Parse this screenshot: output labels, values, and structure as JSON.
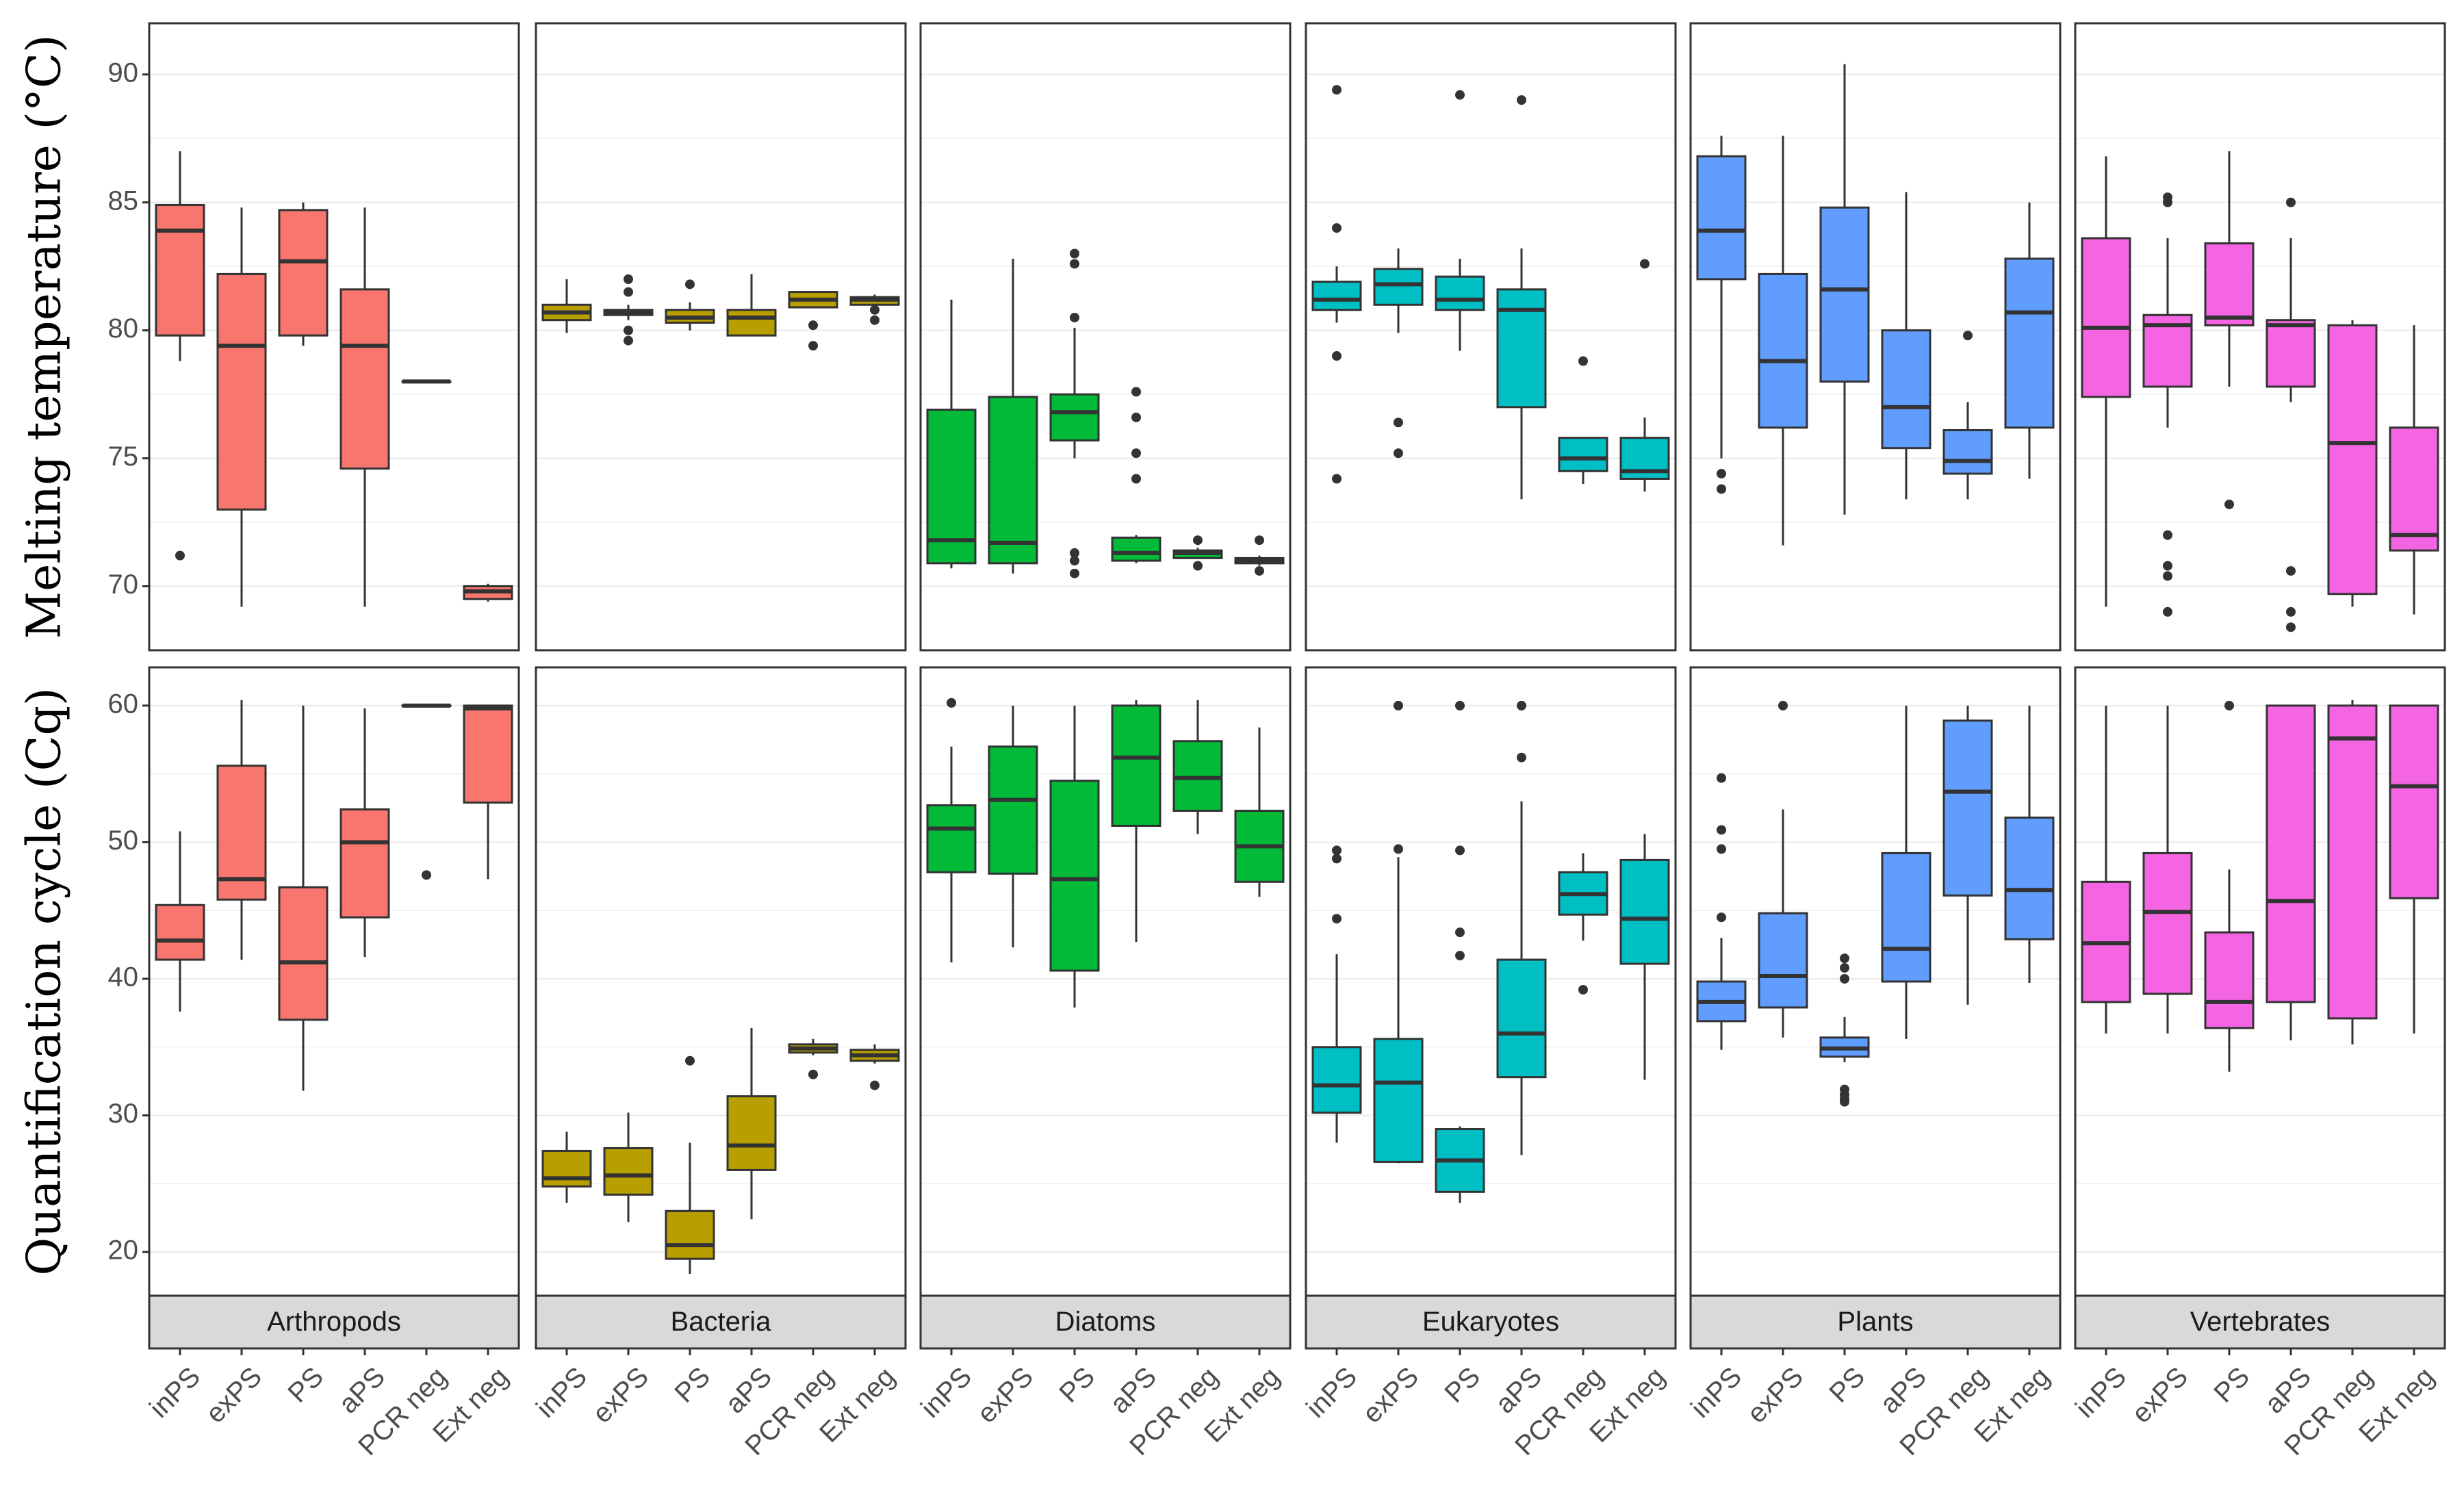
{
  "chart_data": {
    "type": "boxplot",
    "layout": "faceted grid: 2 rows (metrics) x 6 columns (taxa)",
    "categories": [
      "inPS",
      "exPS",
      "PS",
      "aPS",
      "PCR neg",
      "Ext neg"
    ],
    "facets": [
      {
        "name": "Arthropods",
        "color": "#F8766D"
      },
      {
        "name": "Bacteria",
        "color": "#B79F00"
      },
      {
        "name": "Diatoms",
        "color": "#00BA38"
      },
      {
        "name": "Eukaryotes",
        "color": "#00BFC4"
      },
      {
        "name": "Plants",
        "color": "#619CFF"
      },
      {
        "name": "Vertebrates",
        "color": "#F564E3"
      }
    ],
    "rows": [
      {
        "ylabel": "Melting temperature (°C)",
        "ylim": [
          67.5,
          92.0
        ],
        "yticks": [
          70,
          75,
          80,
          85,
          90
        ],
        "ytick_labels": [
          "70",
          "75",
          "80",
          "85",
          "90"
        ],
        "panels": [
          [
            {
              "min": 78.8,
              "q1": 79.8,
              "median": 83.9,
              "q3": 84.9,
              "max": 87.0,
              "outliers": [
                71.2
              ]
            },
            {
              "min": 69.2,
              "q1": 73.0,
              "median": 79.4,
              "q3": 82.2,
              "max": 84.8,
              "outliers": []
            },
            {
              "min": 79.4,
              "q1": 79.8,
              "median": 82.7,
              "q3": 84.7,
              "max": 85.0,
              "outliers": []
            },
            {
              "min": 69.2,
              "q1": 74.6,
              "median": 79.4,
              "q3": 81.6,
              "max": 84.8,
              "outliers": []
            },
            {
              "min": 78.0,
              "q1": 78.0,
              "median": 78.0,
              "q3": 78.0,
              "max": 78.0,
              "outliers": []
            },
            {
              "min": 69.4,
              "q1": 69.5,
              "median": 69.8,
              "q3": 70.0,
              "max": 70.1,
              "outliers": []
            }
          ],
          [
            {
              "min": 79.9,
              "q1": 80.4,
              "median": 80.7,
              "q3": 81.0,
              "max": 82.0,
              "outliers": []
            },
            {
              "min": 80.4,
              "q1": 80.6,
              "median": 80.7,
              "q3": 80.8,
              "max": 81.0,
              "outliers": [
                82.0,
                81.5,
                80.0,
                79.6
              ]
            },
            {
              "min": 80.0,
              "q1": 80.3,
              "median": 80.5,
              "q3": 80.8,
              "max": 81.1,
              "outliers": [
                81.8
              ]
            },
            {
              "min": 79.8,
              "q1": 79.8,
              "median": 80.5,
              "q3": 80.8,
              "max": 82.2,
              "outliers": []
            },
            {
              "min": 80.9,
              "q1": 80.9,
              "median": 81.2,
              "q3": 81.5,
              "max": 81.5,
              "outliers": [
                80.2,
                79.4
              ]
            },
            {
              "min": 81.0,
              "q1": 81.0,
              "median": 81.2,
              "q3": 81.3,
              "max": 81.4,
              "outliers": [
                80.8,
                80.4
              ]
            }
          ],
          [
            {
              "min": 70.7,
              "q1": 70.9,
              "median": 71.8,
              "q3": 76.9,
              "max": 81.2,
              "outliers": []
            },
            {
              "min": 70.5,
              "q1": 70.9,
              "median": 71.7,
              "q3": 77.4,
              "max": 82.8,
              "outliers": []
            },
            {
              "min": 75.0,
              "q1": 75.7,
              "median": 76.8,
              "q3": 77.5,
              "max": 80.1,
              "outliers": [
                83.0,
                82.6,
                80.5,
                71.3,
                71.0,
                70.5
              ]
            },
            {
              "min": 70.9,
              "q1": 71.0,
              "median": 71.3,
              "q3": 71.9,
              "max": 72.0,
              "outliers": [
                77.6,
                76.6,
                75.2,
                74.2
              ]
            },
            {
              "min": 71.1,
              "q1": 71.1,
              "median": 71.3,
              "q3": 71.4,
              "max": 71.5,
              "outliers": [
                71.8,
                70.8
              ]
            },
            {
              "min": 70.8,
              "q1": 70.9,
              "median": 71.0,
              "q3": 71.1,
              "max": 71.2,
              "outliers": [
                71.8,
                70.6
              ]
            }
          ],
          [
            {
              "min": 80.3,
              "q1": 80.8,
              "median": 81.2,
              "q3": 81.9,
              "max": 82.5,
              "outliers": [
                89.4,
                84.0,
                79.0,
                74.2
              ]
            },
            {
              "min": 79.9,
              "q1": 81.0,
              "median": 81.8,
              "q3": 82.4,
              "max": 83.2,
              "outliers": [
                76.4,
                75.2
              ]
            },
            {
              "min": 79.2,
              "q1": 80.8,
              "median": 81.2,
              "q3": 82.1,
              "max": 82.8,
              "outliers": [
                89.2
              ]
            },
            {
              "min": 73.4,
              "q1": 77.0,
              "median": 80.8,
              "q3": 81.6,
              "max": 83.2,
              "outliers": [
                89.0
              ]
            },
            {
              "min": 74.0,
              "q1": 74.5,
              "median": 75.0,
              "q3": 75.8,
              "max": 75.8,
              "outliers": [
                78.8
              ]
            },
            {
              "min": 73.7,
              "q1": 74.2,
              "median": 74.5,
              "q3": 75.8,
              "max": 76.6,
              "outliers": [
                82.6
              ]
            }
          ],
          [
            {
              "min": 75.0,
              "q1": 82.0,
              "median": 83.9,
              "q3": 86.8,
              "max": 87.6,
              "outliers": [
                74.4,
                73.8
              ]
            },
            {
              "min": 71.6,
              "q1": 76.2,
              "median": 78.8,
              "q3": 82.2,
              "max": 87.6,
              "outliers": []
            },
            {
              "min": 72.8,
              "q1": 78.0,
              "median": 81.6,
              "q3": 84.8,
              "max": 90.4,
              "outliers": []
            },
            {
              "min": 73.4,
              "q1": 75.4,
              "median": 77.0,
              "q3": 80.0,
              "max": 85.4,
              "outliers": []
            },
            {
              "min": 73.4,
              "q1": 74.4,
              "median": 74.9,
              "q3": 76.1,
              "max": 77.2,
              "outliers": [
                79.8
              ]
            },
            {
              "min": 74.2,
              "q1": 76.2,
              "median": 80.7,
              "q3": 82.8,
              "max": 85.0,
              "outliers": []
            }
          ],
          [
            {
              "min": 69.2,
              "q1": 77.4,
              "median": 80.1,
              "q3": 83.6,
              "max": 86.8,
              "outliers": []
            },
            {
              "min": 76.2,
              "q1": 77.8,
              "median": 80.2,
              "q3": 80.6,
              "max": 83.6,
              "outliers": [
                85.2,
                85.0,
                72.0,
                70.8,
                70.4,
                69.0
              ]
            },
            {
              "min": 77.8,
              "q1": 80.2,
              "median": 80.5,
              "q3": 83.4,
              "max": 87.0,
              "outliers": [
                73.2
              ]
            },
            {
              "min": 77.2,
              "q1": 77.8,
              "median": 80.2,
              "q3": 80.4,
              "max": 83.6,
              "outliers": [
                85.0,
                70.6,
                69.0,
                68.4
              ]
            },
            {
              "min": 69.2,
              "q1": 69.7,
              "median": 75.6,
              "q3": 80.2,
              "max": 80.4,
              "outliers": []
            },
            {
              "min": 68.9,
              "q1": 71.4,
              "median": 72.0,
              "q3": 76.2,
              "max": 80.2,
              "outliers": []
            }
          ]
        ]
      },
      {
        "ylabel": "Quantification cycle (Cq)",
        "ylim": [
          16.8,
          62.8
        ],
        "yticks": [
          20,
          30,
          40,
          50,
          60
        ],
        "ytick_labels": [
          "20",
          "30",
          "40",
          "50",
          "60"
        ],
        "panels": [
          [
            {
              "min": 37.6,
              "q1": 41.4,
              "median": 42.8,
              "q3": 45.4,
              "max": 50.8,
              "outliers": []
            },
            {
              "min": 41.4,
              "q1": 45.8,
              "median": 47.3,
              "q3": 55.6,
              "max": 60.4,
              "outliers": []
            },
            {
              "min": 31.8,
              "q1": 37.0,
              "median": 41.2,
              "q3": 46.7,
              "max": 60.0,
              "outliers": []
            },
            {
              "min": 41.6,
              "q1": 44.5,
              "median": 50.0,
              "q3": 52.4,
              "max": 59.8,
              "outliers": []
            },
            {
              "min": 60.0,
              "q1": 60.0,
              "median": 60.0,
              "q3": 60.0,
              "max": 60.0,
              "outliers": [
                47.6
              ]
            },
            {
              "min": 47.3,
              "q1": 52.9,
              "median": 59.8,
              "q3": 60.0,
              "max": 60.0,
              "outliers": []
            }
          ],
          [
            {
              "min": 23.6,
              "q1": 24.8,
              "median": 25.4,
              "q3": 27.4,
              "max": 28.8,
              "outliers": []
            },
            {
              "min": 22.2,
              "q1": 24.2,
              "median": 25.6,
              "q3": 27.6,
              "max": 30.2,
              "outliers": []
            },
            {
              "min": 18.4,
              "q1": 19.5,
              "median": 20.5,
              "q3": 23.0,
              "max": 28.0,
              "outliers": [
                34.0
              ]
            },
            {
              "min": 22.4,
              "q1": 26.0,
              "median": 27.8,
              "q3": 31.4,
              "max": 36.4,
              "outliers": []
            },
            {
              "min": 34.4,
              "q1": 34.6,
              "median": 34.9,
              "q3": 35.2,
              "max": 35.6,
              "outliers": [
                33.0
              ]
            },
            {
              "min": 33.8,
              "q1": 34.0,
              "median": 34.4,
              "q3": 34.8,
              "max": 35.2,
              "outliers": [
                32.2
              ]
            }
          ],
          [
            {
              "min": 41.2,
              "q1": 47.8,
              "median": 51.0,
              "q3": 52.7,
              "max": 57.0,
              "outliers": [
                60.2
              ]
            },
            {
              "min": 42.3,
              "q1": 47.7,
              "median": 53.1,
              "q3": 57.0,
              "max": 60.0,
              "outliers": []
            },
            {
              "min": 37.9,
              "q1": 40.6,
              "median": 47.3,
              "q3": 54.5,
              "max": 60.0,
              "outliers": []
            },
            {
              "min": 42.7,
              "q1": 51.2,
              "median": 56.2,
              "q3": 60.0,
              "max": 60.4,
              "outliers": []
            },
            {
              "min": 50.6,
              "q1": 52.3,
              "median": 54.7,
              "q3": 57.4,
              "max": 60.4,
              "outliers": []
            },
            {
              "min": 46.0,
              "q1": 47.1,
              "median": 49.7,
              "q3": 52.3,
              "max": 58.4,
              "outliers": []
            }
          ],
          [
            {
              "min": 28.0,
              "q1": 30.2,
              "median": 32.2,
              "q3": 35.0,
              "max": 41.8,
              "outliers": [
                49.4,
                48.8,
                44.4
              ]
            },
            {
              "min": 26.5,
              "q1": 26.6,
              "median": 32.4,
              "q3": 35.6,
              "max": 48.9,
              "outliers": [
                60.0,
                49.5
              ]
            },
            {
              "min": 23.6,
              "q1": 24.4,
              "median": 26.7,
              "q3": 29.0,
              "max": 29.2,
              "outliers": [
                60.0,
                49.4,
                43.4,
                41.7
              ]
            },
            {
              "min": 27.1,
              "q1": 32.8,
              "median": 36.0,
              "q3": 41.4,
              "max": 53.0,
              "outliers": [
                60.0,
                56.2
              ]
            },
            {
              "min": 42.8,
              "q1": 44.7,
              "median": 46.2,
              "q3": 47.8,
              "max": 49.2,
              "outliers": [
                39.2
              ]
            },
            {
              "min": 32.6,
              "q1": 41.1,
              "median": 44.4,
              "q3": 48.7,
              "max": 50.6,
              "outliers": []
            }
          ],
          [
            {
              "min": 34.8,
              "q1": 36.9,
              "median": 38.3,
              "q3": 39.8,
              "max": 43.0,
              "outliers": [
                54.7,
                50.9,
                49.5,
                44.5
              ]
            },
            {
              "min": 35.7,
              "q1": 37.9,
              "median": 40.2,
              "q3": 44.8,
              "max": 52.4,
              "outliers": [
                60.0
              ]
            },
            {
              "min": 33.9,
              "q1": 34.3,
              "median": 34.9,
              "q3": 35.7,
              "max": 37.2,
              "outliers": [
                41.5,
                40.8,
                40.0,
                31.9,
                31.5,
                31.2,
                31.0
              ]
            },
            {
              "min": 35.6,
              "q1": 39.8,
              "median": 42.2,
              "q3": 49.2,
              "max": 60.0,
              "outliers": []
            },
            {
              "min": 38.1,
              "q1": 46.1,
              "median": 53.7,
              "q3": 58.9,
              "max": 60.0,
              "outliers": []
            },
            {
              "min": 39.7,
              "q1": 42.9,
              "median": 46.5,
              "q3": 51.8,
              "max": 60.0,
              "outliers": []
            }
          ],
          [
            {
              "min": 36.0,
              "q1": 38.3,
              "median": 42.6,
              "q3": 47.1,
              "max": 60.0,
              "outliers": []
            },
            {
              "min": 36.0,
              "q1": 38.9,
              "median": 44.9,
              "q3": 49.2,
              "max": 60.0,
              "outliers": []
            },
            {
              "min": 33.2,
              "q1": 36.4,
              "median": 38.3,
              "q3": 43.4,
              "max": 48.0,
              "outliers": [
                60.0
              ]
            },
            {
              "min": 35.5,
              "q1": 38.3,
              "median": 45.7,
              "q3": 60.0,
              "max": 60.0,
              "outliers": []
            },
            {
              "min": 35.2,
              "q1": 37.1,
              "median": 57.6,
              "q3": 60.0,
              "max": 60.4,
              "outliers": []
            },
            {
              "min": 36.0,
              "q1": 45.9,
              "median": 54.1,
              "q3": 60.0,
              "max": 60.0,
              "outliers": []
            }
          ]
        ]
      }
    ]
  }
}
